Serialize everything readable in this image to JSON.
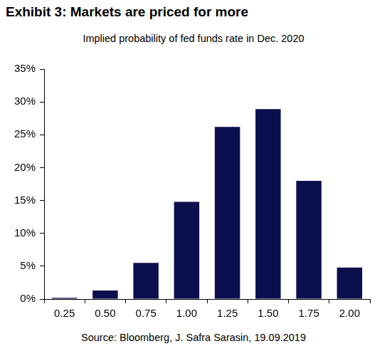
{
  "chart_data": {
    "type": "bar",
    "title": "Exhibit 3: Markets are priced for more",
    "subtitle": "Implied probability of fed funds rate in Dec. 2020",
    "source": "Source: Bloomberg, J. Safra Sarasin, 19.09.2019",
    "categories": [
      "0.25",
      "0.50",
      "0.75",
      "1.00",
      "1.25",
      "1.50",
      "1.75",
      "2.00"
    ],
    "values": [
      0.2,
      1.3,
      5.5,
      14.8,
      26.2,
      28.9,
      18.0,
      4.8
    ],
    "color": "#0b0f4e",
    "ylim": [
      0,
      35
    ],
    "yticks": [
      {
        "value": 0,
        "label": "0%"
      },
      {
        "value": 5,
        "label": "5%"
      },
      {
        "value": 10,
        "label": "10%"
      },
      {
        "value": 15,
        "label": "15%"
      },
      {
        "value": 20,
        "label": "20%"
      },
      {
        "value": 25,
        "label": "25%"
      },
      {
        "value": 30,
        "label": "30%"
      },
      {
        "value": 35,
        "label": "35%"
      }
    ],
    "grid": false
  }
}
